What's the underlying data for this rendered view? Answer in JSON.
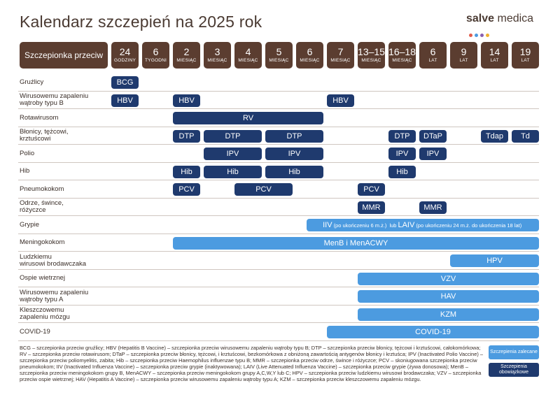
{
  "title": "Kalendarz szczepień na 2025 rok",
  "brand": {
    "bold": "salve",
    "rest": " medica",
    "dot_colors": [
      "#e25b4a",
      "#4c9be0",
      "#8a5fb0",
      "#f0b030"
    ]
  },
  "colors": {
    "dark": "#1f3a6e",
    "light": "#4c9be0",
    "header": "#5b3d30"
  },
  "header": {
    "first": "Szczepionka przeciw",
    "columns": [
      {
        "n": "24",
        "u": "GODZINY"
      },
      {
        "n": "6",
        "u": "TYGODNI"
      },
      {
        "n": "2",
        "u": "MIESIĄC"
      },
      {
        "n": "3",
        "u": "MIESIĄC"
      },
      {
        "n": "4",
        "u": "MIESIĄC"
      },
      {
        "n": "5",
        "u": "MIESIĄC"
      },
      {
        "n": "6",
        "u": "MIESIĄC"
      },
      {
        "n": "7",
        "u": "MIESIĄC"
      },
      {
        "n": "13–15",
        "u": "MIESIĄC"
      },
      {
        "n": "16–18",
        "u": "MIESIĄC"
      },
      {
        "n": "6",
        "u": "LAT"
      },
      {
        "n": "9",
        "u": "LAT"
      },
      {
        "n": "14",
        "u": "LAT"
      },
      {
        "n": "19",
        "u": "LAT"
      }
    ]
  },
  "rows": [
    {
      "label": [
        "Gruźlicy"
      ],
      "bars": [
        {
          "s": 0,
          "e": 0,
          "t": "BCG",
          "k": "dark"
        }
      ]
    },
    {
      "label": [
        "Wirusowemu zapaleniu",
        "wątroby typu B"
      ],
      "bars": [
        {
          "s": 0,
          "e": 0,
          "t": "HBV",
          "k": "dark"
        },
        {
          "s": 2,
          "e": 2,
          "t": "HBV",
          "k": "dark"
        },
        {
          "s": 7,
          "e": 7,
          "t": "HBV",
          "k": "dark"
        }
      ]
    },
    {
      "label": [
        "Rotawirusom"
      ],
      "bars": [
        {
          "s": 2,
          "e": 6,
          "t": "RV",
          "k": "dark"
        }
      ]
    },
    {
      "label": [
        "Błonicy, tężcowi,",
        "krztuścowi"
      ],
      "bars": [
        {
          "s": 2,
          "e": 2,
          "t": "DTP",
          "k": "dark"
        },
        {
          "s": 3,
          "e": 4,
          "t": "DTP",
          "k": "dark"
        },
        {
          "s": 5,
          "e": 6,
          "t": "DTP",
          "k": "dark"
        },
        {
          "s": 9,
          "e": 9,
          "t": "DTP",
          "k": "dark"
        },
        {
          "s": 10,
          "e": 10,
          "t": "DTaP",
          "k": "dark"
        },
        {
          "s": 12,
          "e": 12,
          "t": "Tdap",
          "k": "dark"
        },
        {
          "s": 13,
          "e": 13,
          "t": "Td",
          "k": "dark"
        }
      ]
    },
    {
      "label": [
        "Polio"
      ],
      "bars": [
        {
          "s": 3,
          "e": 4,
          "t": "IPV",
          "k": "dark"
        },
        {
          "s": 5,
          "e": 6,
          "t": "IPV",
          "k": "dark"
        },
        {
          "s": 9,
          "e": 9,
          "t": "IPV",
          "k": "dark"
        },
        {
          "s": 10,
          "e": 10,
          "t": "IPV",
          "k": "dark"
        }
      ]
    },
    {
      "label": [
        "Hib"
      ],
      "bars": [
        {
          "s": 2,
          "e": 2,
          "t": "Hib",
          "k": "dark"
        },
        {
          "s": 3,
          "e": 4,
          "t": "Hib",
          "k": "dark"
        },
        {
          "s": 5,
          "e": 6,
          "t": "Hib",
          "k": "dark"
        },
        {
          "s": 9,
          "e": 9,
          "t": "Hib",
          "k": "dark"
        }
      ]
    },
    {
      "label": [
        "Pneumokokom"
      ],
      "bars": [
        {
          "s": 2,
          "e": 2,
          "t": "PCV",
          "k": "dark"
        },
        {
          "s": 4,
          "e": 5,
          "t": "PCV",
          "k": "dark"
        },
        {
          "s": 8,
          "e": 8,
          "t": "PCV",
          "k": "dark"
        }
      ]
    },
    {
      "label": [
        "Odrze, śwince,",
        "różyczce"
      ],
      "bars": [
        {
          "s": 8,
          "e": 8,
          "t": "MMR",
          "k": "dark"
        },
        {
          "s": 10,
          "e": 10,
          "t": "MMR",
          "k": "dark"
        }
      ]
    },
    {
      "label": [
        "Grypie"
      ],
      "bars": [
        {
          "s": 6.35,
          "e": 13,
          "k": "light",
          "parts": [
            {
              "t": "IIV",
              "c": "main"
            },
            {
              "t": "(po ukończeniu 6 m.ż.)",
              "c": "note"
            },
            {
              "t": "lub",
              "c": "note"
            },
            {
              "t": "LAIV",
              "c": "main"
            },
            {
              "t": "(po ukończeniu 24 m.ż. do ukończenia 18 lat)",
              "c": "note"
            }
          ]
        }
      ]
    },
    {
      "label": [
        "Meningokokom"
      ],
      "bars": [
        {
          "s": 2,
          "e": 13,
          "t": "MenB i MenACWY",
          "k": "light"
        }
      ]
    },
    {
      "label": [
        "Ludzkiemu",
        "wirusowi brodawczaka"
      ],
      "bars": [
        {
          "s": 11,
          "e": 13,
          "t": "HPV",
          "k": "light"
        }
      ]
    },
    {
      "label": [
        "Ospie wietrznej"
      ],
      "bars": [
        {
          "s": 8,
          "e": 13,
          "t": "VZV",
          "k": "light"
        }
      ]
    },
    {
      "label": [
        "Wirusowemu zapaleniu",
        "wątroby typu A"
      ],
      "bars": [
        {
          "s": 8,
          "e": 13,
          "t": "HAV",
          "k": "light"
        }
      ]
    },
    {
      "label": [
        "Kleszczowemu",
        "zapaleniu mózgu"
      ],
      "bars": [
        {
          "s": 8,
          "e": 13,
          "t": "KZM",
          "k": "light"
        }
      ]
    },
    {
      "label": [
        "COVID-19"
      ],
      "bars": [
        {
          "s": 7,
          "e": 13,
          "t": "COVID-19",
          "k": "light"
        }
      ]
    }
  ],
  "footnote": "BCG – szczepionka przeciw gruźlicy; HBV (Hepatitis B Vaccine) – szczepionka przeciw wirusowemu zapaleniu wątroby typu B; DTP – szczepionka przeciw błonicy, tężcowi i krztuścowi, całokomórkowa; RV – szczepionka przeciw rotawirusom; DTaP – szczepionka przeciw błonicy, tężcowi, i krztuścowi, bezkomórkowa z obniżoną zawartością antygenów błonicy i krztuśca; IPV (Inactivated Polio Vaccine) – szczepionka przeciw poliomyelitis, zabita; Hib – szczepionka przeciw Haemophilus influenzae typu B; MMR – szczepionka przeciw odrze, śwince i różyczce; PCV – skoniugowana szczepionka przeciw pneumokokom; IIV (Inactivated Influenza Vaccine) – szczepionka przeciw grypie (inaktywowana); LAIV (Live Attenuated Influenza Vaccine) – szczepionka przeciw grypie (żywa donosowa); MenB – szczepionka przeciw meningokokom grupy B, MenACWY – szczepionka przeciw meningokokom grupy A,C,W,Y lub C; HPV – szczepionka przeciw ludzkiemu wirusowi brodawczaka; VZV – szczepionka przeciw ospie wietrznej; HAV (Hepatitis A Vaccine) – szczepionka przeciw wirusowemu zapaleniu wątroby typu A; KZM – szczepionka przeciw kleszczowemu zapaleniu mózgu.",
  "legend": {
    "recommended": "Szczepienia zalecane",
    "mandatory": "Szczepienia obowiązkowe"
  }
}
